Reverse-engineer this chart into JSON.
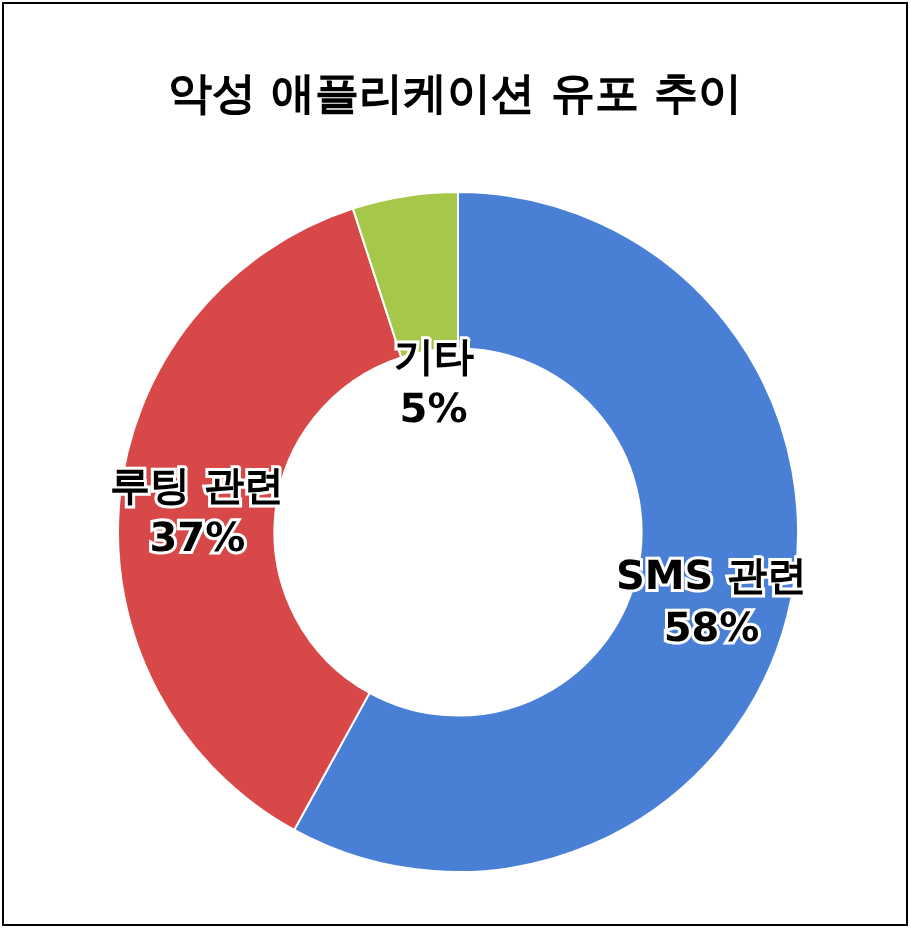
{
  "chart_data": {
    "type": "donut",
    "title": "악성 애플리케이션 유포 추이",
    "categories": [
      "SMS 관련",
      "루팅 관련",
      "기타"
    ],
    "values": [
      58,
      37,
      5
    ],
    "colors": [
      "#4a7fd6",
      "#d84848",
      "#a6c84a"
    ],
    "value_labels": [
      "58%",
      "37%",
      "5%"
    ],
    "legend": false
  }
}
